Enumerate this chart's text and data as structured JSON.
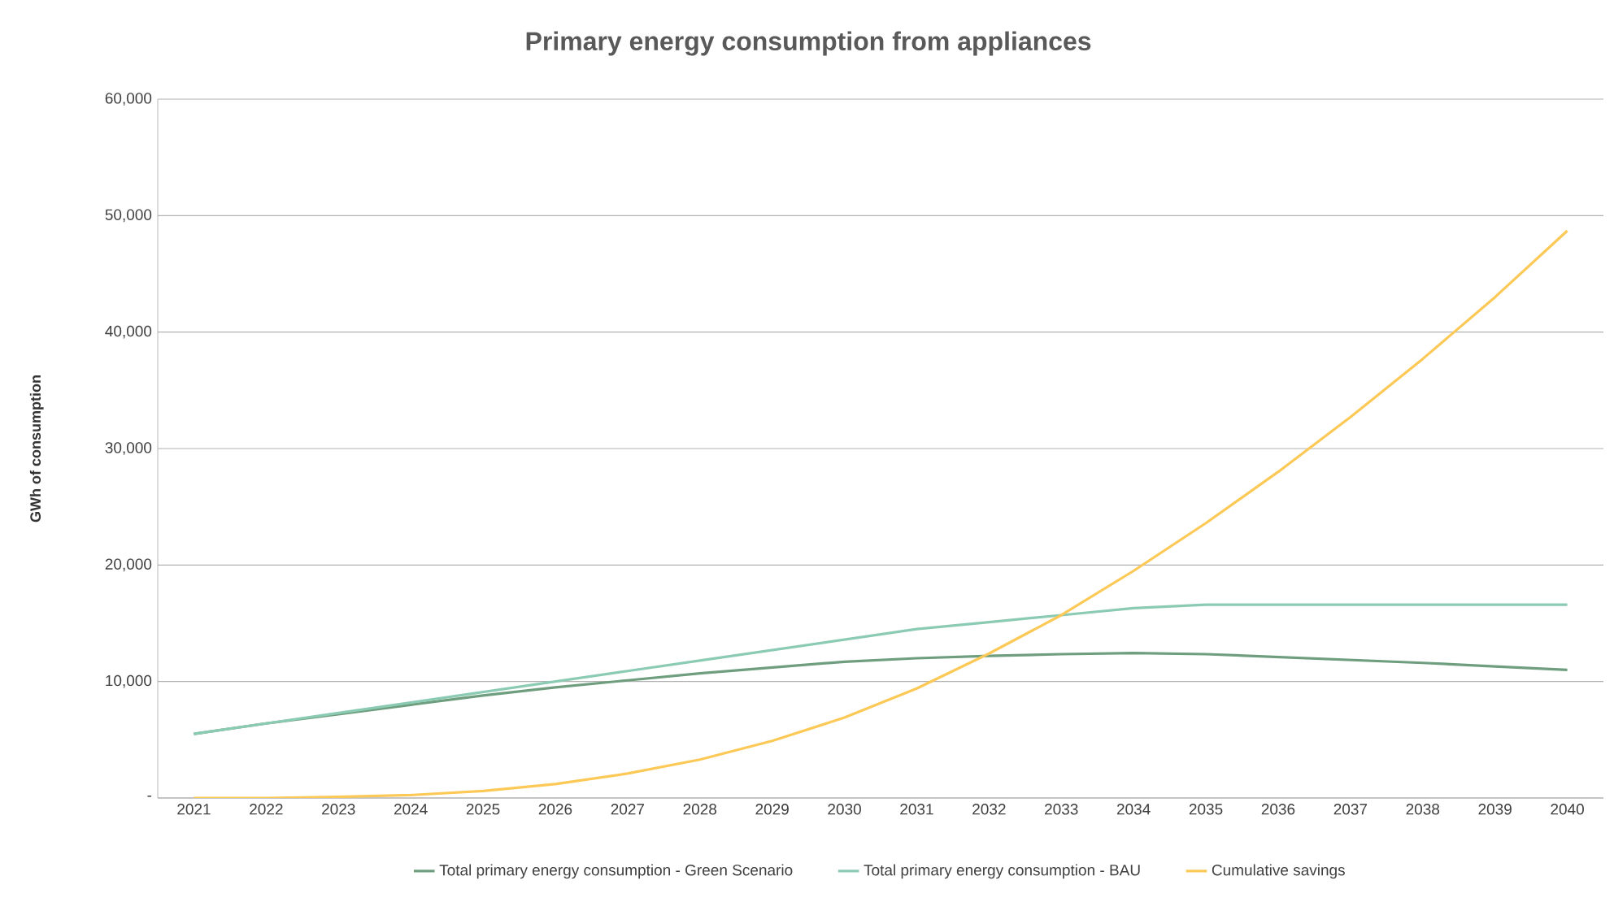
{
  "chart_data": {
    "type": "line",
    "title": "Primary energy consumption from appliances",
    "ylabel": "GWh of consumption",
    "categories": [
      "2021",
      "2022",
      "2023",
      "2024",
      "2025",
      "2026",
      "2027",
      "2028",
      "2029",
      "2030",
      "2031",
      "2032",
      "2033",
      "2034",
      "2035",
      "2036",
      "2037",
      "2038",
      "2039",
      "2040"
    ],
    "series": [
      {
        "name": "Total primary energy consumption - Green Scenario",
        "color": "#6f9e7e",
        "values": [
          5500,
          6400,
          7200,
          8000,
          8800,
          9500,
          10100,
          10700,
          11200,
          11700,
          12000,
          12200,
          12350,
          12450,
          12350,
          12100,
          11850,
          11600,
          11300,
          11000
        ]
      },
      {
        "name": "Total primary energy consumption - BAU",
        "color": "#8ccbb3",
        "values": [
          5500,
          6400,
          7300,
          8200,
          9100,
          10000,
          10900,
          11800,
          12700,
          13600,
          14500,
          15100,
          15700,
          16300,
          16600,
          16600,
          16600,
          16600,
          16600,
          16600
        ]
      },
      {
        "name": "Cumulative savings",
        "color": "#fcc957",
        "values": [
          0,
          0,
          100,
          250,
          600,
          1200,
          2100,
          3300,
          4900,
          6900,
          9400,
          12400,
          15700,
          19500,
          23600,
          28000,
          32700,
          37700,
          43000,
          48700
        ]
      }
    ],
    "ylim": [
      0,
      60000
    ],
    "yticks": [
      {
        "value": 0,
        "label": "-"
      },
      {
        "value": 10000,
        "label": "10,000"
      },
      {
        "value": 20000,
        "label": "20,000"
      },
      {
        "value": 30000,
        "label": "30,000"
      },
      {
        "value": 40000,
        "label": "40,000"
      },
      {
        "value": 50000,
        "label": "50,000"
      },
      {
        "value": 60000,
        "label": "60,000"
      }
    ],
    "grid": "y",
    "legend": "bottom",
    "marker": "none",
    "line_style": "solid"
  }
}
